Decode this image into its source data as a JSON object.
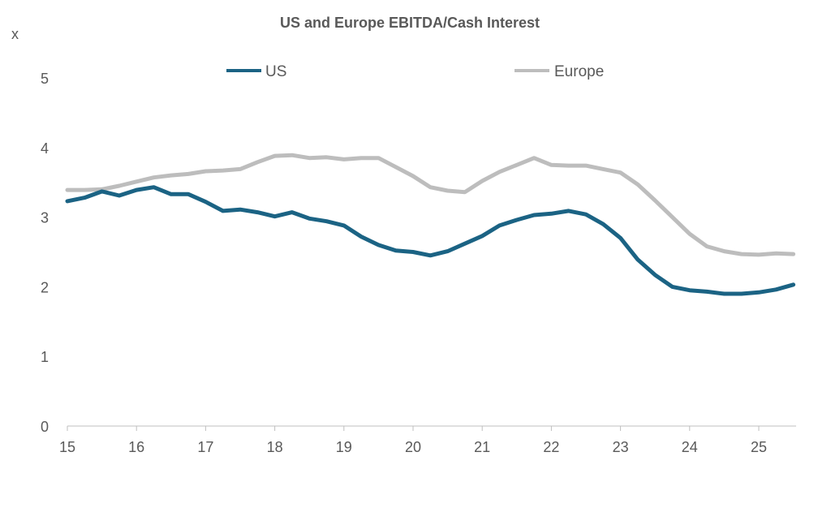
{
  "chart_data": {
    "type": "line",
    "title": "US and Europe EBITDA/Cash Interest",
    "ylabel": "x",
    "xlabel": "",
    "ylim": [
      0,
      5
    ],
    "xlim": [
      15,
      25.5
    ],
    "yticks": [
      "0",
      "1",
      "2",
      "3",
      "4",
      "5"
    ],
    "xticks": [
      "15",
      "16",
      "17",
      "18",
      "19",
      "20",
      "21",
      "22",
      "23",
      "24",
      "25"
    ],
    "grid": false,
    "legend": "top",
    "x": [
      15,
      15.25,
      15.5,
      15.75,
      16,
      16.25,
      16.5,
      16.75,
      17,
      17.25,
      17.5,
      17.75,
      18,
      18.25,
      18.5,
      18.75,
      19,
      19.25,
      19.5,
      19.75,
      20,
      20.25,
      20.5,
      20.75,
      21,
      21.25,
      21.5,
      21.75,
      22,
      22.25,
      22.5,
      22.75,
      23,
      23.25,
      23.5,
      23.75,
      24,
      24.25,
      24.5,
      24.75,
      25,
      25.25,
      25.5
    ],
    "series": [
      {
        "name": "US",
        "color": "#1B6384",
        "values": [
          3.23,
          3.28,
          3.37,
          3.31,
          3.39,
          3.43,
          3.33,
          3.33,
          3.22,
          3.09,
          3.11,
          3.07,
          3.01,
          3.07,
          2.98,
          2.94,
          2.88,
          2.72,
          2.6,
          2.52,
          2.5,
          2.45,
          2.51,
          2.62,
          2.73,
          2.88,
          2.96,
          3.03,
          3.05,
          3.09,
          3.04,
          2.9,
          2.7,
          2.39,
          2.17,
          2.0,
          1.95,
          1.93,
          1.9,
          1.9,
          1.92,
          1.96,
          2.03
        ]
      },
      {
        "name": "Europe",
        "color": "#BDBDBD",
        "values": [
          3.39,
          3.39,
          3.4,
          3.45,
          3.51,
          3.57,
          3.6,
          3.62,
          3.66,
          3.67,
          3.69,
          3.79,
          3.88,
          3.89,
          3.85,
          3.86,
          3.83,
          3.85,
          3.85,
          3.72,
          3.59,
          3.43,
          3.38,
          3.36,
          3.52,
          3.65,
          3.75,
          3.85,
          3.75,
          3.74,
          3.74,
          3.69,
          3.64,
          3.47,
          3.24,
          3.0,
          2.76,
          2.58,
          2.51,
          2.47,
          2.46,
          2.48,
          2.47
        ]
      }
    ]
  }
}
